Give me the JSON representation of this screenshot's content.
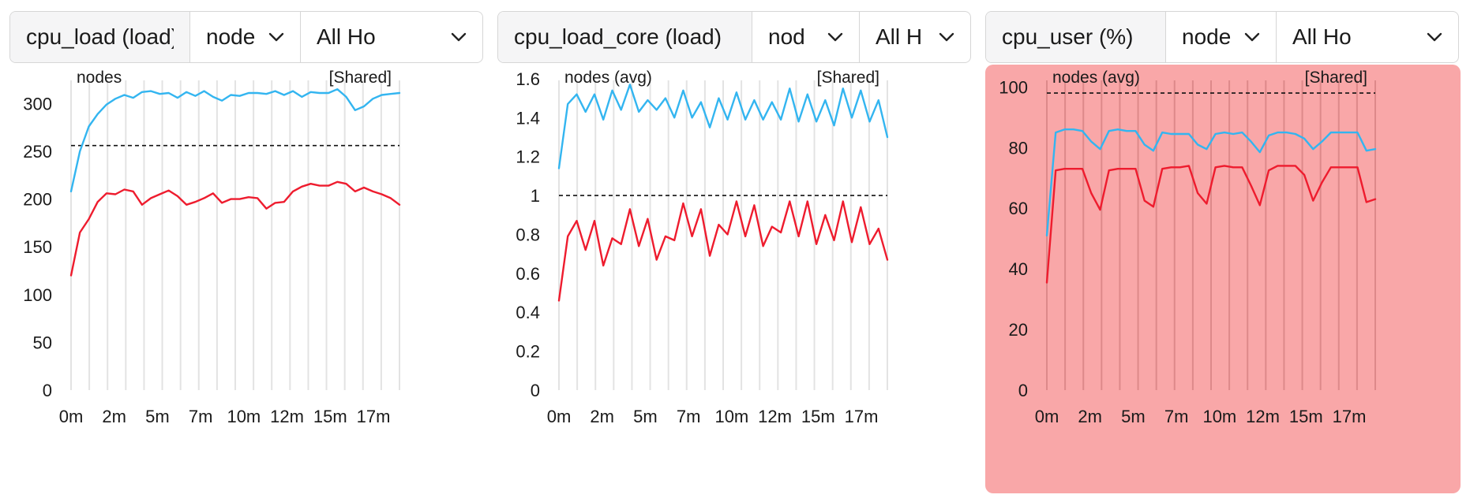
{
  "panels": [
    {
      "metric": "cpu_load (load)",
      "group": "node",
      "hosts": "All Ho",
      "title": "nodes",
      "shared": "[Shared]",
      "alert": false,
      "chart_data": {
        "type": "line",
        "x_tick_labels": [
          "0m",
          "2m",
          "5m",
          "7m",
          "10m",
          "12m",
          "15m",
          "17m"
        ],
        "y_ticks": [
          0,
          50,
          100,
          150,
          200,
          250,
          300
        ],
        "y_tick_labels": [
          "0",
          "50",
          "100",
          "150",
          "200",
          "250",
          "300"
        ],
        "ylim": [
          0,
          330
        ],
        "threshold": 256,
        "grid": "vertical",
        "series": [
          {
            "color": "#33b5f0",
            "values": [
              208,
              250,
              276,
              289,
              299,
              305,
              309,
              306,
              312,
              313,
              310,
              311,
              306,
              312,
              308,
              313,
              307,
              303,
              309,
              308,
              311,
              311,
              310,
              313,
              309,
              313,
              307,
              312,
              311,
              311,
              315,
              307,
              293,
              297,
              305,
              309,
              310,
              311
            ]
          },
          {
            "color": "#ee1c2e",
            "values": [
              120,
              165,
              179,
              197,
              206,
              205,
              210,
              208,
              194,
              201,
              205,
              209,
              203,
              194,
              197,
              201,
              206,
              196,
              200,
              200,
              202,
              201,
              190,
              196,
              197,
              208,
              213,
              216,
              214,
              214,
              218,
              216,
              208,
              212,
              208,
              205,
              201,
              194
            ]
          }
        ]
      }
    },
    {
      "metric": "cpu_load_core (load)",
      "group": "nod",
      "hosts": "All H",
      "title": "nodes (avg)",
      "shared": "[Shared]",
      "alert": false,
      "chart_data": {
        "type": "line",
        "x_tick_labels": [
          "0m",
          "2m",
          "5m",
          "7m",
          "10m",
          "12m",
          "15m",
          "17m"
        ],
        "y_ticks": [
          0,
          0.2,
          0.4,
          0.6,
          0.8,
          1,
          1.2,
          1.4,
          1.6
        ],
        "y_tick_labels": [
          "0",
          "0.2",
          "0.4",
          "0.6",
          "0.8",
          "1",
          "1.2",
          "1.4",
          "1.6"
        ],
        "ylim": [
          0,
          1.62
        ],
        "threshold": 1.0,
        "grid": "vertical",
        "series": [
          {
            "color": "#33b5f0",
            "values": [
              1.14,
              1.47,
              1.52,
              1.43,
              1.52,
              1.39,
              1.54,
              1.44,
              1.57,
              1.43,
              1.49,
              1.44,
              1.5,
              1.4,
              1.54,
              1.4,
              1.48,
              1.35,
              1.5,
              1.39,
              1.53,
              1.39,
              1.49,
              1.39,
              1.48,
              1.39,
              1.55,
              1.38,
              1.52,
              1.38,
              1.49,
              1.36,
              1.55,
              1.4,
              1.54,
              1.38,
              1.49,
              1.3
            ]
          },
          {
            "color": "#ee1c2e",
            "values": [
              0.46,
              0.79,
              0.87,
              0.72,
              0.87,
              0.64,
              0.78,
              0.75,
              0.93,
              0.74,
              0.88,
              0.67,
              0.79,
              0.77,
              0.96,
              0.79,
              0.93,
              0.69,
              0.85,
              0.8,
              0.97,
              0.79,
              0.95,
              0.74,
              0.84,
              0.81,
              0.97,
              0.79,
              0.97,
              0.75,
              0.9,
              0.77,
              0.97,
              0.76,
              0.94,
              0.75,
              0.83,
              0.67
            ]
          }
        ]
      }
    },
    {
      "metric": "cpu_user (%)",
      "group": "node",
      "hosts": "All Ho",
      "title": "nodes (avg)",
      "shared": "[Shared]",
      "alert": true,
      "alert_color": "#f9a7a8",
      "chart_data": {
        "type": "line",
        "x_tick_labels": [
          "0m",
          "2m",
          "5m",
          "7m",
          "10m",
          "12m",
          "15m",
          "17m"
        ],
        "y_ticks": [
          0,
          20,
          40,
          60,
          80,
          100
        ],
        "y_tick_labels": [
          "0",
          "20",
          "40",
          "60",
          "80",
          "100"
        ],
        "ylim": [
          0,
          104
        ],
        "threshold": 98,
        "grid": "vertical",
        "series": [
          {
            "color": "#33b5f0",
            "values": [
              51,
              85,
              86,
              86,
              85.5,
              82,
              79.5,
              85.5,
              86,
              85.5,
              85.5,
              81,
              79,
              85,
              84.5,
              84.5,
              84.5,
              81,
              79.5,
              84.5,
              85,
              84.5,
              85,
              82,
              78.5,
              84,
              85,
              85,
              84.5,
              83,
              79.5,
              82,
              85,
              85,
              85,
              85,
              79,
              79.5
            ]
          },
          {
            "color": "#ee1c2e",
            "values": [
              35.5,
              72.5,
              73,
              73,
              73,
              65,
              59.5,
              72.5,
              73,
              73,
              73,
              62.5,
              60.5,
              73,
              73.5,
              73.5,
              74,
              65,
              61.5,
              73.5,
              74,
              73.5,
              73.5,
              67.5,
              61,
              72.5,
              74,
              74,
              74,
              71,
              62.5,
              68.5,
              73.5,
              73.5,
              73.5,
              73.5,
              62,
              63
            ]
          }
        ]
      }
    }
  ]
}
